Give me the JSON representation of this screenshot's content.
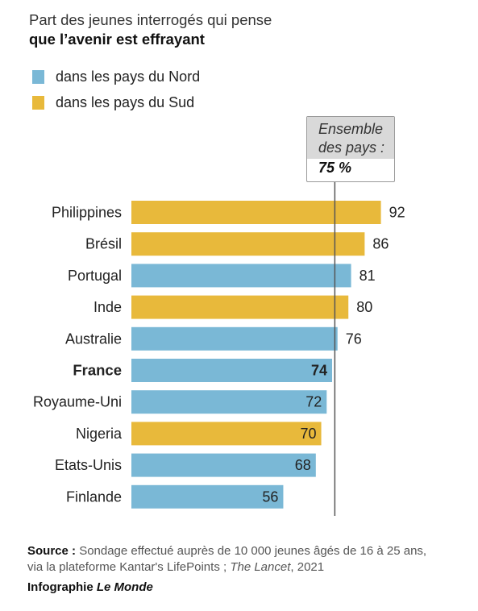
{
  "title": {
    "line1": "Part des jeunes interrogés qui pense",
    "line2": "que l’avenir est effrayant"
  },
  "legend": [
    {
      "label": "dans les pays du Nord",
      "color": "#7ab8d6"
    },
    {
      "label": "dans les pays du Sud",
      "color": "#e8b93b"
    }
  ],
  "callout": {
    "line1": "Ensemble",
    "line2": "des pays :",
    "value": "75 %"
  },
  "colors": {
    "nord": "#7ab8d6",
    "sud": "#e8b93b",
    "reference_line": "#555555"
  },
  "chart_data": {
    "type": "bar",
    "orientation": "horizontal",
    "categories": [
      "Philippines",
      "Brésil",
      "Portugal",
      "Inde",
      "Australie",
      "France",
      "Royaume-Uni",
      "Nigeria",
      "Etats-Unis",
      "Finlande"
    ],
    "values": [
      92,
      86,
      81,
      80,
      76,
      74,
      72,
      70,
      68,
      56
    ],
    "groups": [
      "sud",
      "sud",
      "nord",
      "sud",
      "nord",
      "nord",
      "nord",
      "sud",
      "nord",
      "nord"
    ],
    "highlight": "France",
    "reference_value": 75,
    "xlim": [
      0,
      100
    ]
  },
  "footer": {
    "source_label": "Source :",
    "source_text": "Sondage effectué auprès de 10 000 jeunes âgés de 16 à 25 ans,",
    "line2_prefix": "via la plateforme Kantar's LifePoints ; ",
    "line2_italic": "The Lancet",
    "line2_suffix": ", 2021",
    "credit_prefix": "Infographie ",
    "credit_italic": "Le Monde"
  }
}
